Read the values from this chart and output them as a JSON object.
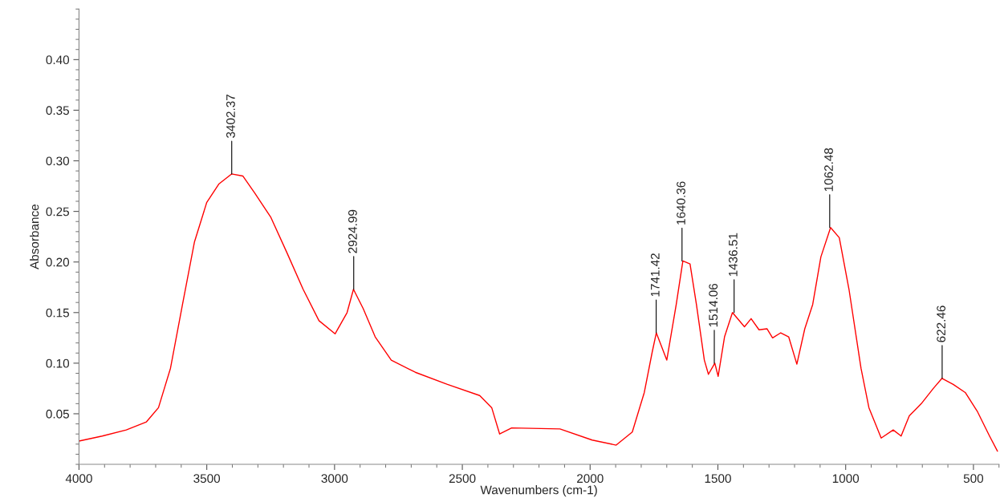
{
  "chart_data": {
    "type": "line",
    "xlabel": "Wavenumbers (cm-1)",
    "ylabel": "Absorbance",
    "xlim": [
      4000,
      400
    ],
    "xticks": [
      4000,
      3500,
      3000,
      2500,
      2000,
      1500,
      1000,
      500
    ],
    "ylim": [
      0,
      0.45
    ],
    "yticks": [
      0.05,
      {
        "value": 0.1,
        "label": "0.10"
      },
      0.15,
      {
        "value": 0.2,
        "label": "0.20"
      },
      0.25,
      {
        "value": 0.3,
        "label": "0.30"
      },
      0.35,
      {
        "value": 0.4,
        "label": "0.40"
      }
    ],
    "grid": false,
    "marker": "none",
    "line_style": "solid",
    "series": [
      {
        "color": "#ff0000",
        "x": [
          4000,
          3909,
          3815,
          3736,
          3689,
          3642,
          3595,
          3548,
          3500,
          3453,
          3403,
          3359,
          3312,
          3249,
          3186,
          3123,
          3061,
          2998,
          2951,
          2926,
          2888,
          2841,
          2778,
          2684,
          2558,
          2432,
          2385,
          2354,
          2307,
          2118,
          1992,
          1898,
          1835,
          1788,
          1757,
          1741,
          1700,
          1663,
          1637,
          1609,
          1584,
          1553,
          1537,
          1512,
          1499,
          1474,
          1443,
          1396,
          1370,
          1339,
          1308,
          1286,
          1254,
          1223,
          1191,
          1160,
          1129,
          1097,
          1059,
          1025,
          987,
          940,
          909,
          861,
          814,
          783,
          751,
          704,
          657,
          623,
          579,
          532,
          484,
          437,
          406
        ],
        "values": [
          0.023,
          0.028,
          0.034,
          0.042,
          0.056,
          0.095,
          0.158,
          0.22,
          0.259,
          0.277,
          0.287,
          0.285,
          0.268,
          0.244,
          0.209,
          0.173,
          0.142,
          0.129,
          0.15,
          0.173,
          0.154,
          0.126,
          0.103,
          0.091,
          0.079,
          0.068,
          0.056,
          0.03,
          0.036,
          0.035,
          0.024,
          0.019,
          0.032,
          0.071,
          0.111,
          0.13,
          0.103,
          0.158,
          0.201,
          0.198,
          0.158,
          0.103,
          0.089,
          0.1,
          0.087,
          0.126,
          0.15,
          0.136,
          0.144,
          0.133,
          0.134,
          0.125,
          0.13,
          0.126,
          0.099,
          0.134,
          0.158,
          0.205,
          0.234,
          0.224,
          0.173,
          0.095,
          0.056,
          0.026,
          0.034,
          0.028,
          0.048,
          0.06,
          0.075,
          0.085,
          0.079,
          0.071,
          0.052,
          0.028,
          0.013
        ]
      }
    ],
    "annotations": [
      {
        "text": "3402.37",
        "x": 3402.37,
        "y": 0.287
      },
      {
        "text": "2924.99",
        "x": 2924.99,
        "y": 0.173
      },
      {
        "text": "1741.42",
        "x": 1741.42,
        "y": 0.13
      },
      {
        "text": "1640.36",
        "x": 1640.36,
        "y": 0.201
      },
      {
        "text": "1514.06",
        "x": 1514.06,
        "y": 0.1
      },
      {
        "text": "1436.51",
        "x": 1436.51,
        "y": 0.15
      },
      {
        "text": "1062.48",
        "x": 1062.48,
        "y": 0.234
      },
      {
        "text": "622.46",
        "x": 622.46,
        "y": 0.085
      }
    ]
  }
}
